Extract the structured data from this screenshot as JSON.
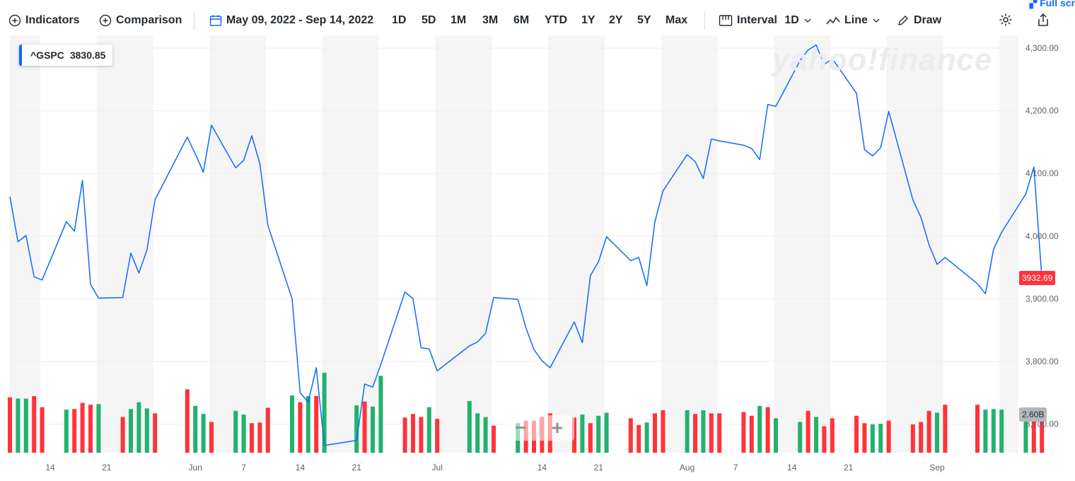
{
  "toolbar": {
    "indicators": "Indicators",
    "comparison": "Comparison",
    "date_range": "May 09, 2022 - Sep 14, 2022",
    "ranges": [
      "1D",
      "5D",
      "1M",
      "3M",
      "6M",
      "YTD",
      "1Y",
      "2Y",
      "5Y",
      "Max"
    ],
    "interval_label": "Interval",
    "interval_value": "1D",
    "chart_type": "Line",
    "draw": "Draw",
    "fullscreen": "Full scr"
  },
  "badge": {
    "symbol": "^GSPC",
    "value": "3830.85"
  },
  "last_price_label": "3932.69",
  "volume_label": "2.60B",
  "watermark": "yahoo!finance",
  "zoom": {
    "minus": "−",
    "plus": "+"
  },
  "colors": {
    "line": "#0f69ff",
    "vol_up": "#21b26e",
    "vol_down": "#ff333a",
    "band": "#f5f5f5",
    "grid": "#eceef0"
  },
  "chart_data": {
    "type": "line",
    "series": [
      {
        "name": "^GSPC",
        "x": [
          "2022-05-09",
          "2022-05-10",
          "2022-05-11",
          "2022-05-12",
          "2022-05-13",
          "2022-05-16",
          "2022-05-17",
          "2022-05-18",
          "2022-05-19",
          "2022-05-20",
          "2022-05-23",
          "2022-05-24",
          "2022-05-25",
          "2022-05-26",
          "2022-05-27",
          "2022-05-31",
          "2022-06-01",
          "2022-06-02",
          "2022-06-03",
          "2022-06-06",
          "2022-06-07",
          "2022-06-08",
          "2022-06-09",
          "2022-06-10",
          "2022-06-13",
          "2022-06-14",
          "2022-06-15",
          "2022-06-16",
          "2022-06-17",
          "2022-06-21",
          "2022-06-22",
          "2022-06-23",
          "2022-06-24",
          "2022-06-27",
          "2022-06-28",
          "2022-06-29",
          "2022-06-30",
          "2022-07-01",
          "2022-07-05",
          "2022-07-06",
          "2022-07-07",
          "2022-07-08",
          "2022-07-11",
          "2022-07-12",
          "2022-07-13",
          "2022-07-14",
          "2022-07-15",
          "2022-07-18",
          "2022-07-19",
          "2022-07-20",
          "2022-07-21",
          "2022-07-22",
          "2022-07-25",
          "2022-07-26",
          "2022-07-27",
          "2022-07-28",
          "2022-07-29",
          "2022-08-01",
          "2022-08-02",
          "2022-08-03",
          "2022-08-04",
          "2022-08-05",
          "2022-08-08",
          "2022-08-09",
          "2022-08-10",
          "2022-08-11",
          "2022-08-12",
          "2022-08-15",
          "2022-08-16",
          "2022-08-17",
          "2022-08-18",
          "2022-08-19",
          "2022-08-22",
          "2022-08-23",
          "2022-08-24",
          "2022-08-25",
          "2022-08-26",
          "2022-08-29",
          "2022-08-30",
          "2022-08-31",
          "2022-09-01",
          "2022-09-02",
          "2022-09-06",
          "2022-09-07",
          "2022-09-08",
          "2022-09-09",
          "2022-09-12",
          "2022-09-13"
        ],
        "values": [
          4063,
          3991,
          4001,
          3935,
          3930,
          4023,
          4008,
          4089,
          3923,
          3901,
          3902,
          3973,
          3941,
          3978,
          4058,
          4158,
          4131,
          4102,
          4177,
          4109,
          4121,
          4160,
          4116,
          4017,
          3900,
          3750,
          3735,
          3790,
          3666,
          3674,
          3764,
          3759,
          3795,
          3911,
          3900,
          3822,
          3820,
          3785,
          3825,
          3831,
          3845,
          3902,
          3899,
          3854,
          3819,
          3801,
          3790,
          3863,
          3830,
          3937,
          3959,
          3999,
          3961,
          3966,
          3921,
          4023,
          4072,
          4130,
          4119,
          4092,
          4155,
          4152,
          4145,
          4140,
          4122,
          4210,
          4207,
          4280,
          4297,
          4305,
          4274,
          4283,
          4228,
          4138,
          4128,
          4141,
          4199,
          4058,
          4030,
          3986,
          3955,
          3966,
          3924,
          3908,
          3979,
          4006,
          4067,
          4110
        ],
        "last": {
          "x": "2022-09-14",
          "value": 3932.69
        }
      },
      {
        "name": "Volume",
        "values": [
          2.9,
          2.88,
          2.88,
          2.92,
          2.74,
          2.7,
          2.71,
          2.81,
          2.78,
          2.79,
          2.58,
          2.71,
          2.82,
          2.72,
          2.64,
          3.03,
          2.76,
          2.63,
          2.5,
          2.68,
          2.62,
          2.48,
          2.49,
          2.73,
          2.93,
          2.82,
          2.92,
          2.92,
          3.3,
          2.77,
          2.83,
          2.75,
          3.25,
          2.57,
          2.63,
          2.58,
          2.74,
          2.55,
          2.84,
          2.64,
          2.58,
          2.44,
          2.48,
          2.52,
          2.52,
          2.58,
          2.64,
          2.57,
          2.62,
          2.48,
          2.6,
          2.65,
          2.56,
          2.45,
          2.49,
          2.64,
          2.69,
          2.69,
          2.63,
          2.69,
          2.64,
          2.64,
          2.66,
          2.6,
          2.76,
          2.74,
          2.56,
          2.5,
          2.68,
          2.58,
          2.43,
          2.56,
          2.6,
          2.48,
          2.46,
          2.47,
          2.52,
          2.46,
          2.5,
          2.68,
          2.65,
          2.78,
          2.78,
          2.7,
          2.71,
          2.7,
          2.69,
          2.6
        ],
        "up": [
          false,
          true,
          true,
          false,
          false,
          true,
          false,
          false,
          false,
          true,
          false,
          true,
          true,
          true,
          false,
          false,
          true,
          true,
          false,
          true,
          true,
          false,
          false,
          false,
          true,
          false,
          true,
          false,
          true,
          true,
          false,
          true,
          true,
          false,
          false,
          false,
          true,
          false,
          true,
          true,
          true,
          false,
          true,
          false,
          false,
          false,
          false,
          false,
          true,
          false,
          true,
          true,
          false,
          false,
          true,
          false,
          false,
          true,
          false,
          true,
          false,
          false,
          false,
          false,
          true,
          false,
          true,
          true,
          false,
          true,
          false,
          false,
          false,
          false,
          true,
          true,
          false,
          false,
          false,
          false,
          true,
          false,
          false,
          true,
          true,
          true,
          true,
          false
        ]
      }
    ],
    "x_tick_labels": [
      "14",
      "21",
      "Jun",
      "7",
      "14",
      "21",
      "Jul",
      "14",
      "21",
      "Aug",
      "7",
      "14",
      "21",
      "Sep"
    ],
    "x_tick_dates": [
      "2022-05-14",
      "2022-05-21",
      "2022-06-01",
      "2022-06-07",
      "2022-06-14",
      "2022-06-21",
      "2022-07-01",
      "2022-07-14",
      "2022-07-21",
      "2022-08-01",
      "2022-08-07",
      "2022-08-14",
      "2022-08-21",
      "2022-09-01"
    ],
    "y_tick_labels": [
      "4,300.00",
      "4,200.00",
      "4,100.00",
      "4,000.00",
      "3,900.00",
      "3,800.00",
      "3,700.00"
    ],
    "y_ticks": [
      4300,
      4200,
      4100,
      4000,
      3900,
      3800,
      3700
    ],
    "ylim": [
      3650,
      4320
    ],
    "grid": true
  }
}
